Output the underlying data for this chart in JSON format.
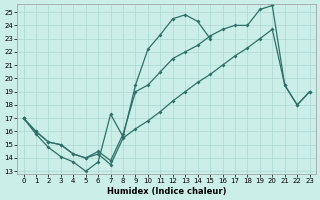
{
  "bg_color": "#cceee8",
  "grid_color": "#aad8d0",
  "line_color": "#2e7068",
  "xlabel": "Humidex (Indice chaleur)",
  "xlim": [
    -0.5,
    23.5
  ],
  "ylim": [
    12.8,
    25.6
  ],
  "yticks": [
    13,
    14,
    15,
    16,
    17,
    18,
    19,
    20,
    21,
    22,
    23,
    24,
    25
  ],
  "xticks": [
    0,
    1,
    2,
    3,
    4,
    5,
    6,
    7,
    8,
    9,
    10,
    11,
    12,
    13,
    14,
    15,
    16,
    17,
    18,
    19,
    20,
    21,
    22,
    23
  ],
  "line1_x": [
    0,
    1,
    2,
    3,
    4,
    5,
    6,
    7,
    8,
    9,
    10,
    11,
    12,
    13,
    14,
    15
  ],
  "line1_y": [
    17.0,
    15.8,
    14.8,
    14.1,
    13.7,
    13.0,
    13.7,
    17.3,
    15.6,
    19.5,
    22.2,
    23.3,
    24.5,
    24.8,
    24.3,
    23.0
  ],
  "line2_x": [
    0,
    1,
    2,
    3,
    4,
    5,
    6,
    7,
    8,
    9,
    10,
    11,
    12,
    13,
    14,
    15,
    16,
    17,
    18,
    19,
    20,
    21,
    22,
    23
  ],
  "line2_y": [
    17.0,
    16.0,
    15.2,
    15.0,
    14.3,
    14.0,
    14.3,
    13.5,
    15.5,
    16.2,
    16.8,
    17.5,
    18.3,
    19.0,
    19.7,
    20.3,
    21.0,
    21.7,
    22.3,
    23.0,
    23.7,
    19.5,
    18.0,
    19.0
  ],
  "line3_x": [
    0,
    1,
    2,
    3,
    4,
    5,
    6,
    7,
    8,
    9,
    10,
    11,
    12,
    13,
    14,
    15,
    16,
    17,
    18,
    19,
    20,
    21,
    22,
    23
  ],
  "line3_y": [
    17.0,
    16.0,
    15.2,
    15.0,
    14.3,
    14.0,
    14.5,
    13.8,
    15.8,
    19.0,
    19.5,
    20.5,
    21.5,
    22.0,
    22.5,
    23.2,
    23.7,
    24.0,
    24.0,
    25.2,
    25.5,
    19.5,
    18.0,
    19.0
  ]
}
